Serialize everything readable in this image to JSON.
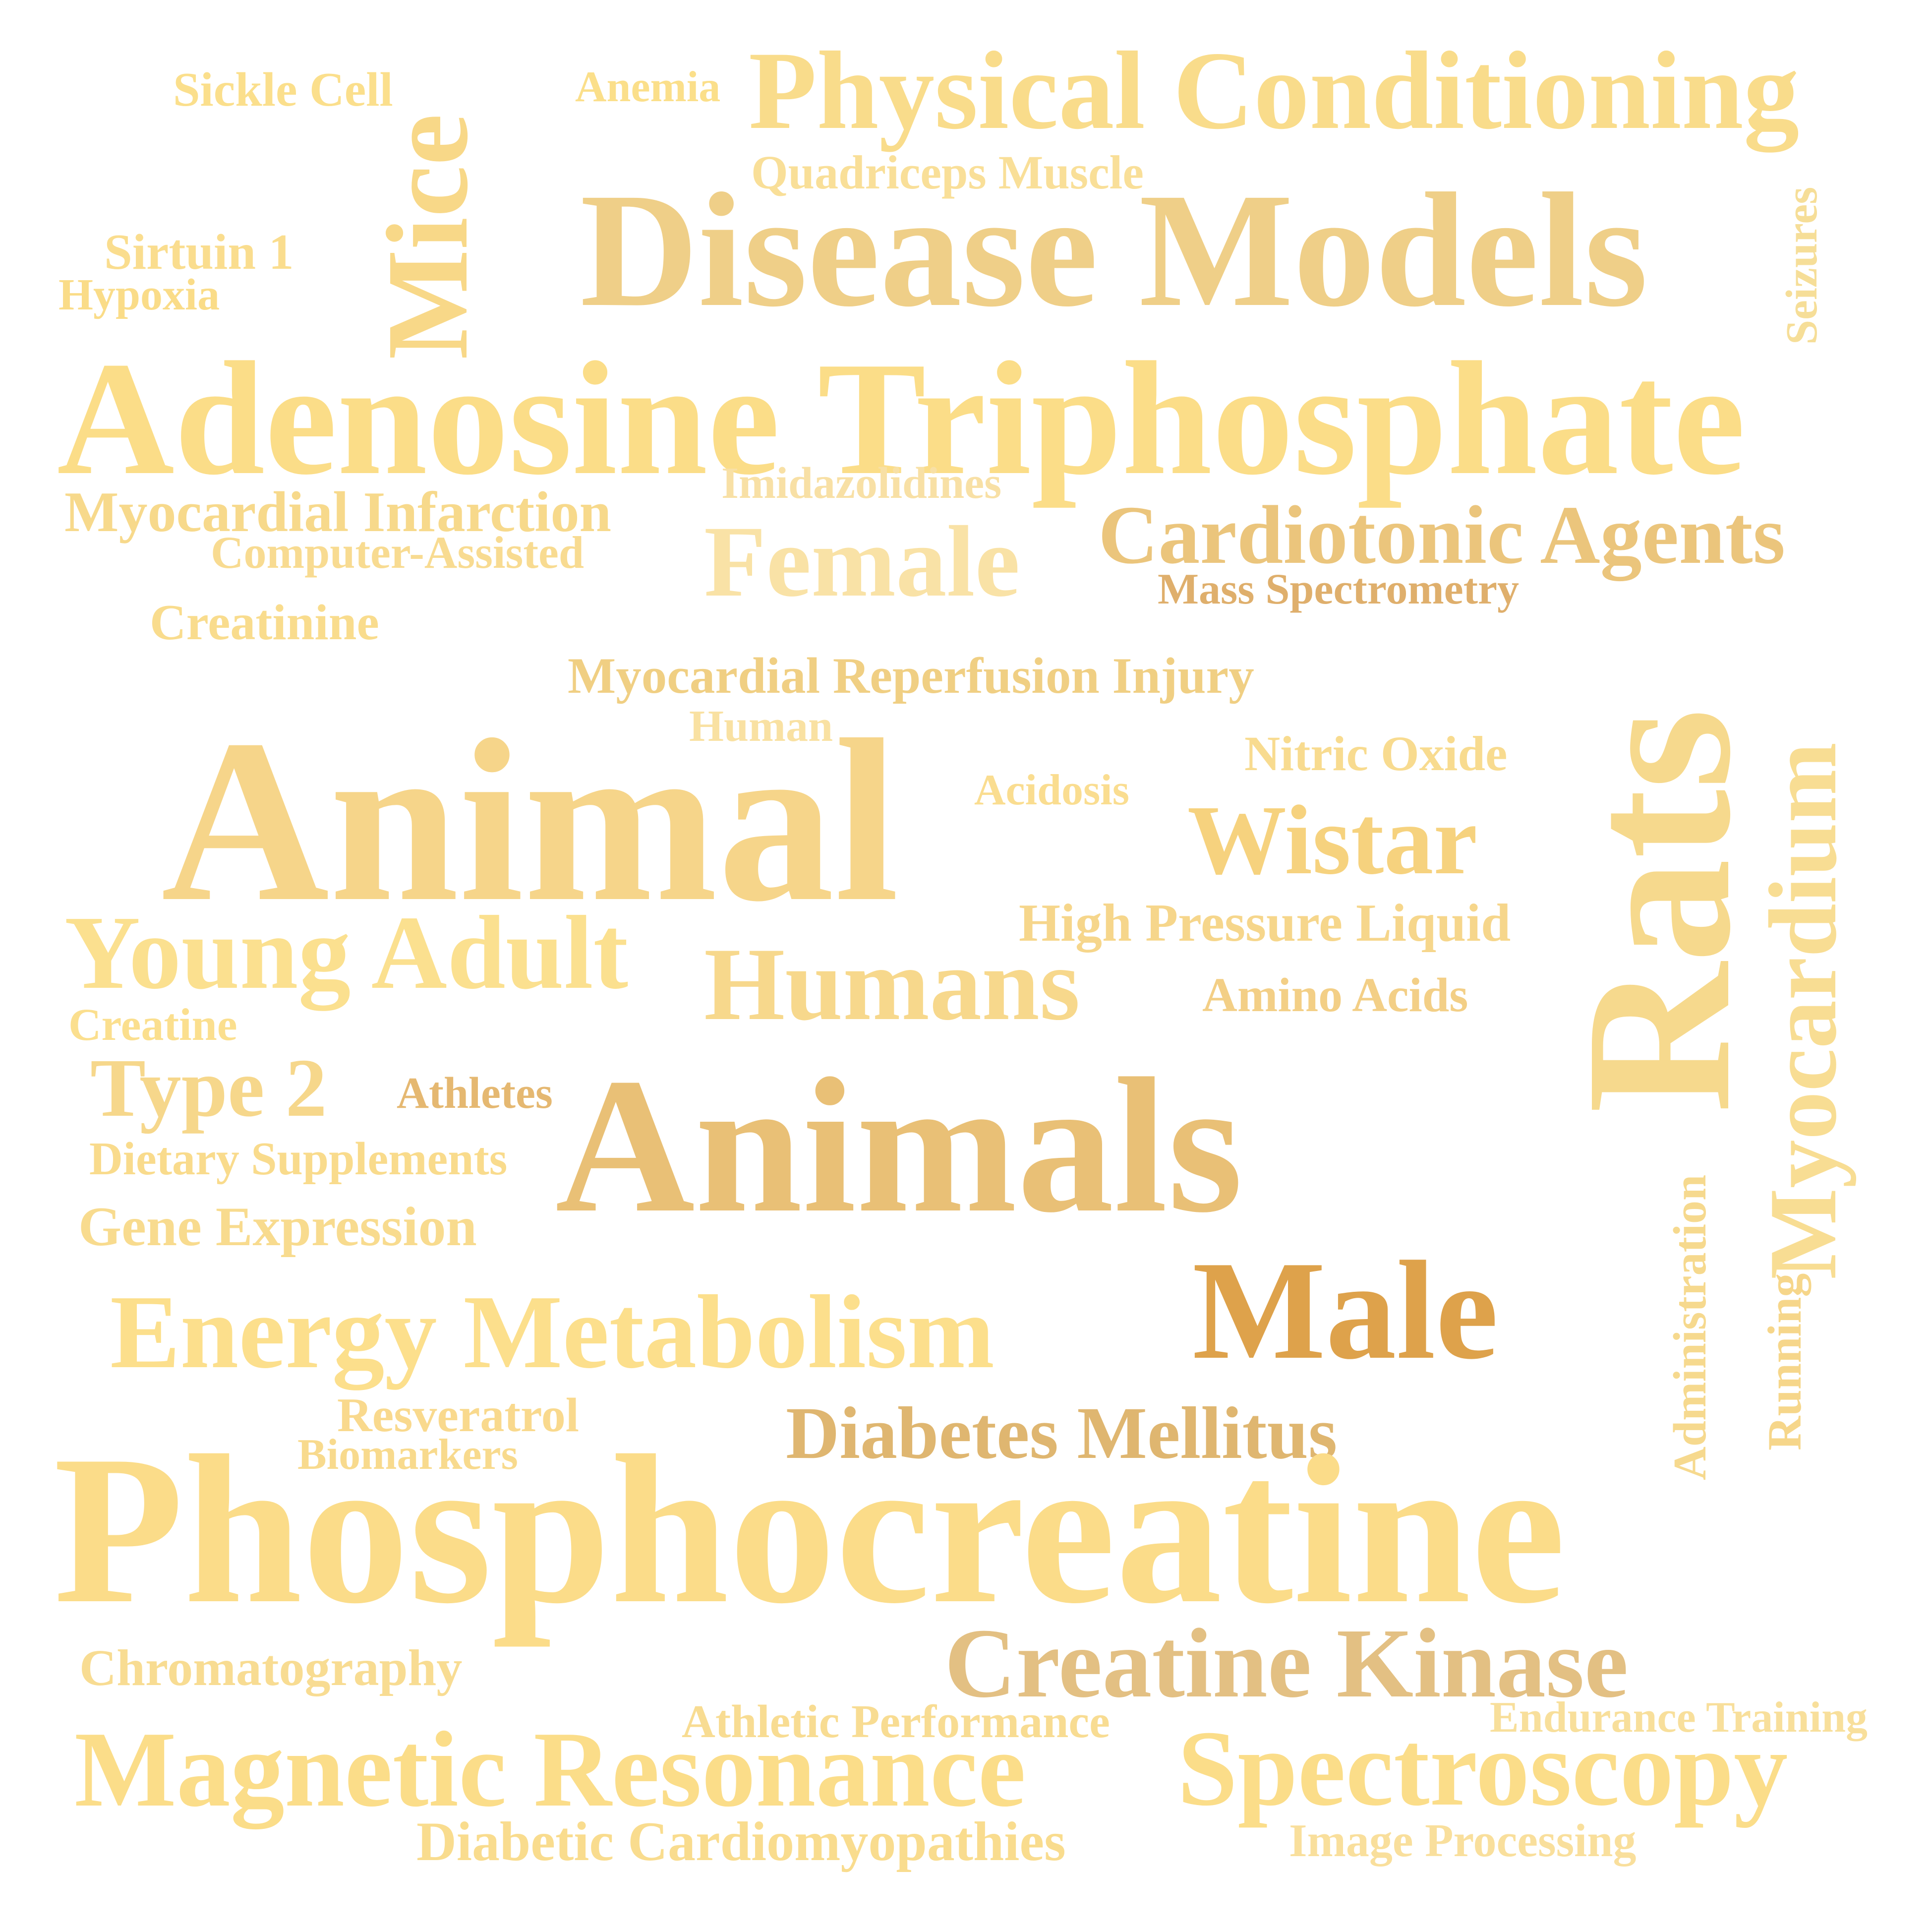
{
  "cloud": {
    "words": [
      {
        "key": "sickle-cell",
        "text": "Sickle Cell",
        "color": "#fbdf8c"
      },
      {
        "key": "mice",
        "text": "Mice",
        "color": "#f8d888"
      },
      {
        "key": "anemia",
        "text": "Anemia",
        "color": "#fbdf8a"
      },
      {
        "key": "physical-conditioning",
        "text": "Physical Conditioning",
        "color": "#f9dc8b"
      },
      {
        "key": "quadriceps-muscle",
        "text": "Quadriceps Muscle",
        "color": "#f9df98"
      },
      {
        "key": "disease-models",
        "text": "Disease Models",
        "color": "#efcf88"
      },
      {
        "key": "seizures",
        "text": "Seizures",
        "color": "#f6de98"
      },
      {
        "key": "sirtuin-1",
        "text": "Sirtuin 1",
        "color": "#fadd8e"
      },
      {
        "key": "hypoxia",
        "text": "Hypoxia",
        "color": "#fadc88"
      },
      {
        "key": "adenosine-triphosphate",
        "text": "Adenosine Triphosphate",
        "color": "#fbdd88"
      },
      {
        "key": "imidazolidines",
        "text": "Imidazolidines",
        "color": "#f8e0a5"
      },
      {
        "key": "myocardial-infarction",
        "text": "Myocardial Infarction",
        "color": "#f7d98b"
      },
      {
        "key": "computer-assisted",
        "text": "Computer-Assisted",
        "color": "#f8db91"
      },
      {
        "key": "female",
        "text": "Female",
        "color": "#f9e2a6"
      },
      {
        "key": "cardiotonic-agents",
        "text": "Cardiotonic Agents",
        "color": "#ebc57c"
      },
      {
        "key": "mass-spectrometry",
        "text": "Mass Spectrometry",
        "color": "#dfaf6c"
      },
      {
        "key": "creatinine",
        "text": "Creatinine",
        "color": "#f9dc8d"
      },
      {
        "key": "myocardial-reperfusion-injury",
        "text": "Myocardial Reperfusion Injury",
        "color": "#f0cf83"
      },
      {
        "key": "rats",
        "text": "Rats",
        "color": "#f6d98d"
      },
      {
        "key": "myocardium",
        "text": "Myocardium",
        "color": "#f8dd93"
      },
      {
        "key": "human",
        "text": "Human",
        "color": "#f9e1a2"
      },
      {
        "key": "nitric-oxide",
        "text": "Nitric Oxide",
        "color": "#f8db8f"
      },
      {
        "key": "animal",
        "text": "Animal",
        "color": "#f6d58a"
      },
      {
        "key": "acidosis",
        "text": "Acidosis",
        "color": "#fadd90"
      },
      {
        "key": "wistar",
        "text": "Wistar",
        "color": "#f6d27e"
      },
      {
        "key": "high-pressure-liquid",
        "text": "High Pressure Liquid",
        "color": "#f6d68b"
      },
      {
        "key": "young-adult",
        "text": "Young Adult",
        "color": "#fbe08f"
      },
      {
        "key": "humans",
        "text": "Humans",
        "color": "#f7d88c"
      },
      {
        "key": "amino-acids",
        "text": "Amino Acids",
        "color": "#f3cf86"
      },
      {
        "key": "creatine",
        "text": "Creatine",
        "color": "#fbdf8e"
      },
      {
        "key": "type-2",
        "text": "Type 2",
        "color": "#f6d78b"
      },
      {
        "key": "athletes",
        "text": "Athletes",
        "color": "#e5b871"
      },
      {
        "key": "animals",
        "text": "Animals",
        "color": "#e9c076"
      },
      {
        "key": "administration",
        "text": "Administration",
        "color": "#f6d98e"
      },
      {
        "key": "dietary-supplements",
        "text": "Dietary Supplements",
        "color": "#f9db8c"
      },
      {
        "key": "gene-expression",
        "text": "Gene Expression",
        "color": "#f8db8e"
      },
      {
        "key": "running",
        "text": "Running",
        "color": "#f6d68a"
      },
      {
        "key": "male",
        "text": "Male",
        "color": "#dea24b"
      },
      {
        "key": "energy-metabolism",
        "text": "Energy Metabolism",
        "color": "#fcdf8c"
      },
      {
        "key": "resveratrol",
        "text": "Resveratrol",
        "color": "#f9d98d"
      },
      {
        "key": "biomarkers",
        "text": "Biomarkers",
        "color": "#f8da8d"
      },
      {
        "key": "diabetes-mellitus",
        "text": "Diabetes Mellitus",
        "color": "#dfb670"
      },
      {
        "key": "phosphocreatine",
        "text": "Phosphocreatine",
        "color": "#fbdc89"
      },
      {
        "key": "chromatography",
        "text": "Chromatography",
        "color": "#f8dc92"
      },
      {
        "key": "creatine-kinase",
        "text": "Creatine Kinase",
        "color": "#e3c083"
      },
      {
        "key": "endurance-training",
        "text": "Endurance Training",
        "color": "#f8df9b"
      },
      {
        "key": "athletic-performance",
        "text": "Athletic Performance",
        "color": "#f8dc92"
      },
      {
        "key": "magnetic-resonance",
        "text": "Magnetic Resonance",
        "color": "#fbdd89"
      },
      {
        "key": "spectroscopy",
        "text": "Spectroscopy",
        "color": "#fbdd89"
      },
      {
        "key": "diabetic-cardiomyopathies",
        "text": "Diabetic Cardiomyopathies",
        "color": "#f9dc8e"
      },
      {
        "key": "image-processing",
        "text": "Image Processing",
        "color": "#f9df9c"
      }
    ]
  }
}
